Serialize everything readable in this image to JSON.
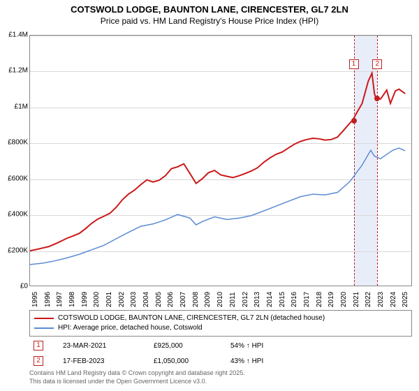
{
  "title": {
    "main": "COTSWOLD LODGE, BAUNTON LANE, CIRENCESTER, GL7 2LN",
    "sub": "Price paid vs. HM Land Registry's House Price Index (HPI)"
  },
  "chart": {
    "type": "line",
    "background_color": "#ffffff",
    "grid_color": "#d8d8d8",
    "axis_color": "#888888",
    "ylim": [
      0,
      1400000
    ],
    "ytick_step": 200000,
    "ytick_labels": [
      "£0",
      "£200K",
      "£400K",
      "£600K",
      "£800K",
      "£1M",
      "£1.2M",
      "£1.4M"
    ],
    "x_range": [
      1995,
      2026
    ],
    "xtick_years": [
      1995,
      1996,
      1997,
      1998,
      1999,
      2000,
      2001,
      2002,
      2003,
      2004,
      2005,
      2006,
      2007,
      2008,
      2009,
      2010,
      2011,
      2012,
      2013,
      2014,
      2015,
      2016,
      2017,
      2018,
      2019,
      2020,
      2021,
      2022,
      2023,
      2024,
      2025
    ],
    "label_fontsize": 10,
    "highlight_band": {
      "start_year": 2021.22,
      "end_year": 2023.13,
      "color": "#e8eef9"
    },
    "highlight_lines": [
      2021.22,
      2023.13
    ],
    "markers": [
      {
        "n": 1,
        "x_year": 2021.22,
        "y_value": 925000,
        "label_y_value": 1240000
      },
      {
        "n": 2,
        "x_year": 2023.13,
        "y_value": 1050000,
        "label_y_value": 1240000
      }
    ],
    "series": [
      {
        "name": "COTSWOLD LODGE, BAUNTON LANE, CIRENCESTER, GL7 2LN (detached house)",
        "color": "#cc1818",
        "line_width": 2,
        "points": [
          [
            1995.0,
            195000
          ],
          [
            1995.5,
            202000
          ],
          [
            1996.0,
            210000
          ],
          [
            1996.5,
            218000
          ],
          [
            1997.0,
            232000
          ],
          [
            1997.5,
            248000
          ],
          [
            1998.0,
            265000
          ],
          [
            1998.5,
            278000
          ],
          [
            1999.0,
            292000
          ],
          [
            1999.5,
            318000
          ],
          [
            2000.0,
            348000
          ],
          [
            2000.5,
            372000
          ],
          [
            2001.0,
            388000
          ],
          [
            2001.5,
            405000
          ],
          [
            2002.0,
            438000
          ],
          [
            2002.5,
            480000
          ],
          [
            2003.0,
            512000
          ],
          [
            2003.5,
            535000
          ],
          [
            2004.0,
            565000
          ],
          [
            2004.5,
            592000
          ],
          [
            2005.0,
            580000
          ],
          [
            2005.5,
            590000
          ],
          [
            2006.0,
            615000
          ],
          [
            2006.5,
            655000
          ],
          [
            2007.0,
            665000
          ],
          [
            2007.5,
            682000
          ],
          [
            2008.0,
            628000
          ],
          [
            2008.5,
            572000
          ],
          [
            2009.0,
            598000
          ],
          [
            2009.5,
            632000
          ],
          [
            2010.0,
            645000
          ],
          [
            2010.5,
            620000
          ],
          [
            2011.0,
            612000
          ],
          [
            2011.5,
            605000
          ],
          [
            2012.0,
            615000
          ],
          [
            2012.5,
            628000
          ],
          [
            2013.0,
            642000
          ],
          [
            2013.5,
            660000
          ],
          [
            2014.0,
            690000
          ],
          [
            2014.5,
            715000
          ],
          [
            2015.0,
            735000
          ],
          [
            2015.5,
            748000
          ],
          [
            2016.0,
            770000
          ],
          [
            2016.5,
            792000
          ],
          [
            2017.0,
            808000
          ],
          [
            2017.5,
            818000
          ],
          [
            2018.0,
            825000
          ],
          [
            2018.5,
            822000
          ],
          [
            2019.0,
            815000
          ],
          [
            2019.5,
            818000
          ],
          [
            2020.0,
            832000
          ],
          [
            2020.5,
            870000
          ],
          [
            2021.0,
            910000
          ],
          [
            2021.22,
            925000
          ],
          [
            2021.5,
            960000
          ],
          [
            2022.0,
            1020000
          ],
          [
            2022.5,
            1145000
          ],
          [
            2022.8,
            1190000
          ],
          [
            2023.0,
            1075000
          ],
          [
            2023.13,
            1050000
          ],
          [
            2023.5,
            1045000
          ],
          [
            2024.0,
            1095000
          ],
          [
            2024.3,
            1020000
          ],
          [
            2024.7,
            1090000
          ],
          [
            2025.0,
            1100000
          ],
          [
            2025.5,
            1075000
          ]
        ]
      },
      {
        "name": "HPI: Average price, detached house, Cotswold",
        "color": "#5b8bd4",
        "line_width": 1.5,
        "points": [
          [
            1995.0,
            118000
          ],
          [
            1996.0,
            125000
          ],
          [
            1997.0,
            138000
          ],
          [
            1998.0,
            155000
          ],
          [
            1999.0,
            175000
          ],
          [
            2000.0,
            200000
          ],
          [
            2001.0,
            225000
          ],
          [
            2002.0,
            262000
          ],
          [
            2003.0,
            298000
          ],
          [
            2004.0,
            332000
          ],
          [
            2005.0,
            345000
          ],
          [
            2006.0,
            368000
          ],
          [
            2007.0,
            398000
          ],
          [
            2008.0,
            378000
          ],
          [
            2008.5,
            340000
          ],
          [
            2009.0,
            358000
          ],
          [
            2010.0,
            385000
          ],
          [
            2011.0,
            370000
          ],
          [
            2012.0,
            378000
          ],
          [
            2013.0,
            392000
          ],
          [
            2014.0,
            418000
          ],
          [
            2015.0,
            445000
          ],
          [
            2016.0,
            472000
          ],
          [
            2017.0,
            498000
          ],
          [
            2018.0,
            512000
          ],
          [
            2019.0,
            508000
          ],
          [
            2020.0,
            522000
          ],
          [
            2021.0,
            582000
          ],
          [
            2022.0,
            675000
          ],
          [
            2022.7,
            758000
          ],
          [
            2023.0,
            725000
          ],
          [
            2023.5,
            710000
          ],
          [
            2024.0,
            735000
          ],
          [
            2024.5,
            758000
          ],
          [
            2025.0,
            770000
          ],
          [
            2025.5,
            755000
          ]
        ]
      }
    ]
  },
  "transactions": [
    {
      "n": "1",
      "date": "23-MAR-2021",
      "price": "£925,000",
      "hpi": "54% ↑ HPI"
    },
    {
      "n": "2",
      "date": "17-FEB-2023",
      "price": "£1,050,000",
      "hpi": "43% ↑ HPI"
    }
  ],
  "credits": {
    "line1": "Contains HM Land Registry data © Crown copyright and database right 2025.",
    "line2": "This data is licensed under the Open Government Licence v3.0."
  }
}
